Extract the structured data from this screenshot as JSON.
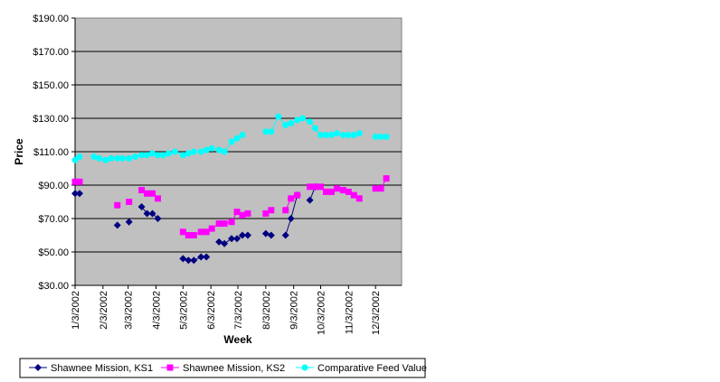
{
  "chart_data": {
    "type": "line",
    "title": "",
    "xlabel": "Week",
    "ylabel": "Price",
    "ylim": [
      30,
      190
    ],
    "y_ticks": [
      "$30.00",
      "$50.00",
      "$70.00",
      "$90.00",
      "$110.00",
      "$130.00",
      "$150.00",
      "$170.00",
      "$190.00"
    ],
    "y_tick_values": [
      30,
      50,
      70,
      90,
      110,
      130,
      150,
      170,
      190
    ],
    "xlim": [
      "2002-01-03",
      "2003-01-01"
    ],
    "x_ticks": [
      "1/3/2002",
      "2/3/2002",
      "3/3/2002",
      "4/3/2002",
      "5/3/2002",
      "6/3/2002",
      "7/3/2002",
      "8/3/2002",
      "9/3/2002",
      "10/3/2002",
      "11/3/2002",
      "12/3/2002"
    ],
    "x_tick_dates": [
      "2002-01-03",
      "2002-02-03",
      "2002-03-03",
      "2002-04-03",
      "2002-05-03",
      "2002-06-03",
      "2002-07-03",
      "2002-08-03",
      "2002-09-03",
      "2002-10-03",
      "2002-11-03",
      "2002-12-03"
    ],
    "grid": "horizontal",
    "legend_position": "bottom",
    "plot_background": "#c0c0c0",
    "series": [
      {
        "name": "Shawnee Mission, KS1",
        "color": "#000080",
        "marker": "diamond",
        "points": [
          {
            "x": "2002-01-03",
            "y": 85
          },
          {
            "x": "2002-01-08",
            "y": 85
          },
          null,
          {
            "x": "2002-02-19",
            "y": 66
          },
          null,
          {
            "x": "2002-03-04",
            "y": 68
          },
          null,
          {
            "x": "2002-03-18",
            "y": 77
          },
          {
            "x": "2002-03-24",
            "y": 73
          },
          {
            "x": "2002-03-30",
            "y": 73
          },
          {
            "x": "2002-04-05",
            "y": 70
          },
          null,
          {
            "x": "2002-05-03",
            "y": 46
          },
          {
            "x": "2002-05-09",
            "y": 45
          },
          {
            "x": "2002-05-15",
            "y": 45
          },
          {
            "x": "2002-05-23",
            "y": 47
          },
          {
            "x": "2002-05-29",
            "y": 47
          },
          null,
          {
            "x": "2002-06-12",
            "y": 56
          },
          {
            "x": "2002-06-18",
            "y": 55
          },
          {
            "x": "2002-06-26",
            "y": 58
          },
          {
            "x": "2002-07-02",
            "y": 58
          },
          {
            "x": "2002-07-08",
            "y": 60
          },
          {
            "x": "2002-07-14",
            "y": 60
          },
          null,
          {
            "x": "2002-08-03",
            "y": 61
          },
          {
            "x": "2002-08-09",
            "y": 60
          },
          null,
          {
            "x": "2002-08-25",
            "y": 60
          },
          {
            "x": "2002-08-31",
            "y": 70
          },
          {
            "x": "2002-09-07",
            "y": 84
          },
          null,
          {
            "x": "2002-09-21",
            "y": 81
          },
          {
            "x": "2002-09-27",
            "y": 89
          }
        ]
      },
      {
        "name": "Shawnee Mission, KS2",
        "color": "#ff00ff",
        "marker": "square",
        "points": [
          {
            "x": "2002-01-03",
            "y": 92
          },
          {
            "x": "2002-01-08",
            "y": 92
          },
          null,
          {
            "x": "2002-02-19",
            "y": 78
          },
          null,
          {
            "x": "2002-03-04",
            "y": 80
          },
          null,
          {
            "x": "2002-03-18",
            "y": 87
          },
          {
            "x": "2002-03-24",
            "y": 85
          },
          {
            "x": "2002-03-30",
            "y": 85
          },
          {
            "x": "2002-04-05",
            "y": 82
          },
          null,
          {
            "x": "2002-05-03",
            "y": 62
          },
          {
            "x": "2002-05-09",
            "y": 60
          },
          {
            "x": "2002-05-15",
            "y": 60
          },
          {
            "x": "2002-05-23",
            "y": 62
          },
          {
            "x": "2002-05-29",
            "y": 62
          },
          {
            "x": "2002-06-04",
            "y": 64
          },
          {
            "x": "2002-06-12",
            "y": 67
          },
          {
            "x": "2002-06-18",
            "y": 67
          },
          {
            "x": "2002-06-26",
            "y": 68
          },
          {
            "x": "2002-07-02",
            "y": 74
          },
          {
            "x": "2002-07-08",
            "y": 72
          },
          {
            "x": "2002-07-14",
            "y": 73
          },
          null,
          {
            "x": "2002-08-03",
            "y": 73
          },
          {
            "x": "2002-08-09",
            "y": 75
          },
          null,
          {
            "x": "2002-08-25",
            "y": 75
          },
          {
            "x": "2002-08-31",
            "y": 82
          },
          {
            "x": "2002-09-07",
            "y": 84
          },
          null,
          {
            "x": "2002-09-21",
            "y": 89
          },
          {
            "x": "2002-09-27",
            "y": 89
          },
          {
            "x": "2002-10-03",
            "y": 89
          },
          {
            "x": "2002-10-09",
            "y": 86
          },
          {
            "x": "2002-10-15",
            "y": 86
          },
          {
            "x": "2002-10-21",
            "y": 88
          },
          {
            "x": "2002-10-28",
            "y": 87
          },
          {
            "x": "2002-11-03",
            "y": 86
          },
          {
            "x": "2002-11-09",
            "y": 84
          },
          {
            "x": "2002-11-15",
            "y": 82
          },
          null,
          {
            "x": "2002-12-03",
            "y": 88
          },
          {
            "x": "2002-12-09",
            "y": 88
          },
          {
            "x": "2002-12-15",
            "y": 94
          }
        ]
      },
      {
        "name": "Comparative Feed Value",
        "color": "#00ffff",
        "marker": "circle",
        "points": [
          {
            "x": "2002-01-03",
            "y": 105
          },
          {
            "x": "2002-01-08",
            "y": 107
          },
          null,
          {
            "x": "2002-01-24",
            "y": 107
          },
          {
            "x": "2002-01-30",
            "y": 106
          },
          {
            "x": "2002-02-06",
            "y": 105
          },
          {
            "x": "2002-02-12",
            "y": 106
          },
          {
            "x": "2002-02-19",
            "y": 106
          },
          {
            "x": "2002-02-25",
            "y": 106
          },
          {
            "x": "2002-03-04",
            "y": 106
          },
          {
            "x": "2002-03-11",
            "y": 107
          },
          {
            "x": "2002-03-18",
            "y": 108
          },
          {
            "x": "2002-03-24",
            "y": 108
          },
          {
            "x": "2002-03-30",
            "y": 109
          },
          {
            "x": "2002-04-05",
            "y": 108
          },
          {
            "x": "2002-04-11",
            "y": 108
          },
          {
            "x": "2002-04-17",
            "y": 109
          },
          {
            "x": "2002-04-24",
            "y": 110
          },
          {
            "x": "2002-05-03",
            "y": 108
          },
          {
            "x": "2002-05-09",
            "y": 109
          },
          {
            "x": "2002-05-15",
            "y": 110
          },
          {
            "x": "2002-05-23",
            "y": 110
          },
          {
            "x": "2002-05-29",
            "y": 111
          },
          {
            "x": "2002-06-04",
            "y": 112
          },
          {
            "x": "2002-06-12",
            "y": 111
          },
          {
            "x": "2002-06-18",
            "y": 110
          },
          {
            "x": "2002-06-26",
            "y": 116
          },
          {
            "x": "2002-07-02",
            "y": 118
          },
          {
            "x": "2002-07-08",
            "y": 120
          },
          null,
          {
            "x": "2002-08-03",
            "y": 122
          },
          {
            "x": "2002-08-09",
            "y": 122
          },
          {
            "x": "2002-08-17",
            "y": 131
          },
          {
            "x": "2002-08-25",
            "y": 126
          },
          {
            "x": "2002-08-31",
            "y": 127
          },
          {
            "x": "2002-09-07",
            "y": 129
          },
          {
            "x": "2002-09-13",
            "y": 130
          },
          {
            "x": "2002-09-21",
            "y": 128
          },
          {
            "x": "2002-09-27",
            "y": 124
          },
          {
            "x": "2002-10-03",
            "y": 120
          },
          {
            "x": "2002-10-09",
            "y": 120
          },
          {
            "x": "2002-10-15",
            "y": 120
          },
          {
            "x": "2002-10-21",
            "y": 121
          },
          {
            "x": "2002-10-28",
            "y": 120
          },
          {
            "x": "2002-11-03",
            "y": 120
          },
          {
            "x": "2002-11-09",
            "y": 120
          },
          {
            "x": "2002-11-15",
            "y": 121
          },
          null,
          {
            "x": "2002-12-03",
            "y": 119
          },
          {
            "x": "2002-12-09",
            "y": 119
          },
          {
            "x": "2002-12-15",
            "y": 119
          }
        ]
      }
    ]
  }
}
